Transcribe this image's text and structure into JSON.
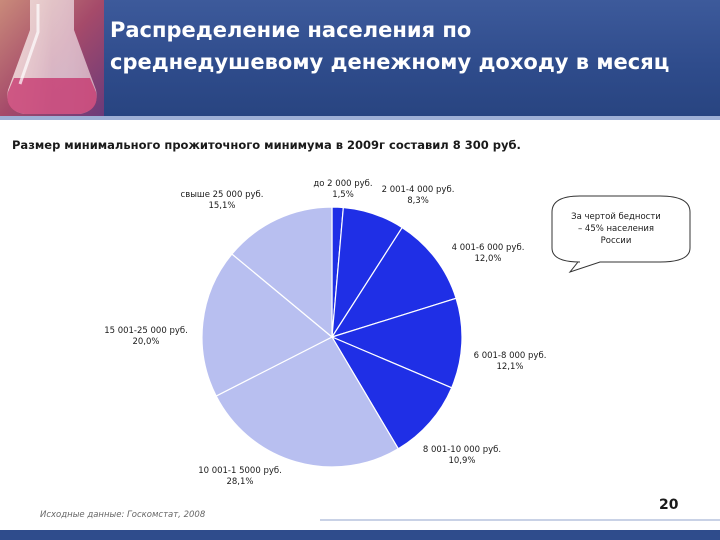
{
  "title": {
    "line1": "Распределение населения по",
    "line2": "среднедушевому денежному доходу в месяц"
  },
  "subtitle": "Размер минимального прожиточного минимума в 2009г составил 8 300 руб.",
  "callout": {
    "line1": "За чертой бедности",
    "line2": "– 45% населения",
    "line3": "России"
  },
  "source": "Исходные данные: Госкомстат, 2008",
  "page_number": "20",
  "colors": {
    "header": "#2f4c8c",
    "dark_slice": "#1f2fe6",
    "light_slice": "#b8bff0",
    "slice_border": "#ffffff"
  },
  "chart_data": {
    "type": "pie",
    "start": "12 o'clock, clockwise",
    "slices": [
      {
        "label": "до 2 000 руб.",
        "value_label": "1,5%",
        "value": 1.5,
        "color": "#1f2fe6"
      },
      {
        "label": "2 001-4 000 руб.",
        "value_label": "8,3%",
        "value": 8.3,
        "color": "#1f2fe6"
      },
      {
        "label": "4 001-6 000 руб.",
        "value_label": "12,0%",
        "value": 12.0,
        "color": "#1f2fe6"
      },
      {
        "label": "6 001-8 000 руб.",
        "value_label": "12,1%",
        "value": 12.1,
        "color": "#1f2fe6"
      },
      {
        "label": "8 001-10 000 руб.",
        "value_label": "10,9%",
        "value": 10.9,
        "color": "#1f2fe6"
      },
      {
        "label": "10 001-1 5000 руб.",
        "value_label": "28,1%",
        "value": 28.1,
        "color": "#b8bff0"
      },
      {
        "label": "15 001-25 000 руб.",
        "value_label": "20,0%",
        "value": 20.0,
        "color": "#b8bff0"
      },
      {
        "label": "свыше 25 000 руб.",
        "value_label": "15,1%",
        "value": 15.1,
        "color": "#b8bff0"
      }
    ]
  }
}
